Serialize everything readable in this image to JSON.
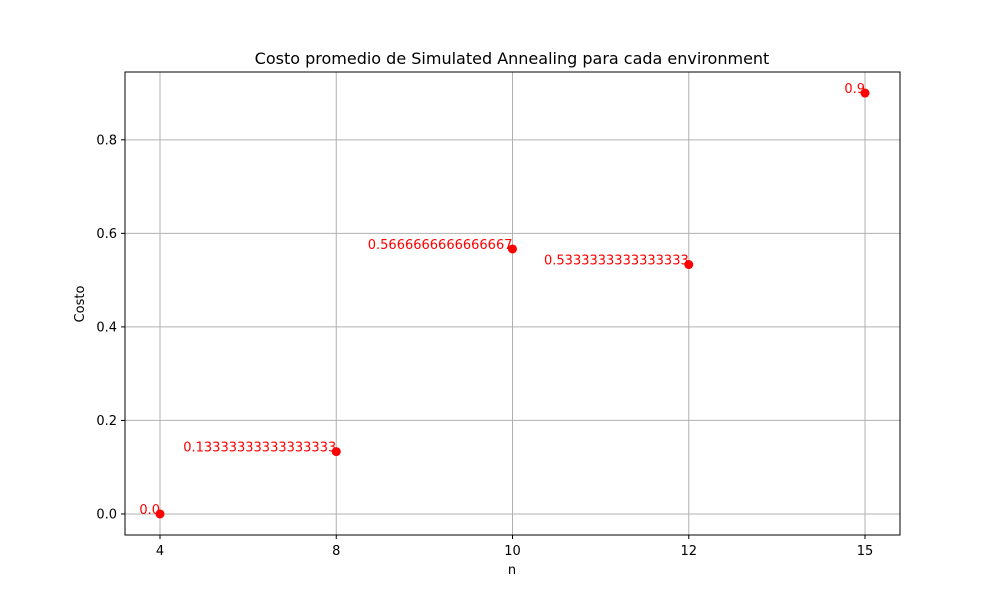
{
  "chart_data": {
    "type": "scatter",
    "title": "Costo promedio de Simulated Annealing para cada environment",
    "xlabel": "n",
    "ylabel": "Costo",
    "x_ticks": [
      "4",
      "8",
      "10",
      "12",
      "15"
    ],
    "y_ticks": [
      0.0,
      0.2,
      0.4,
      0.6,
      0.8
    ],
    "y_tick_labels": [
      "0.0",
      "0.2",
      "0.4",
      "0.6",
      "0.8"
    ],
    "ylim": [
      -0.045,
      0.945
    ],
    "grid": true,
    "color": "#ff0000",
    "points": [
      {
        "x": "4",
        "y": 0.0,
        "label": "0.0"
      },
      {
        "x": "8",
        "y": 0.13333333333333333,
        "label": "0.13333333333333333"
      },
      {
        "x": "10",
        "y": 0.5666666666666667,
        "label": "0.5666666666666667"
      },
      {
        "x": "12",
        "y": 0.5333333333333333,
        "label": "0.5333333333333333"
      },
      {
        "x": "15",
        "y": 0.9,
        "label": "0.9"
      }
    ]
  }
}
